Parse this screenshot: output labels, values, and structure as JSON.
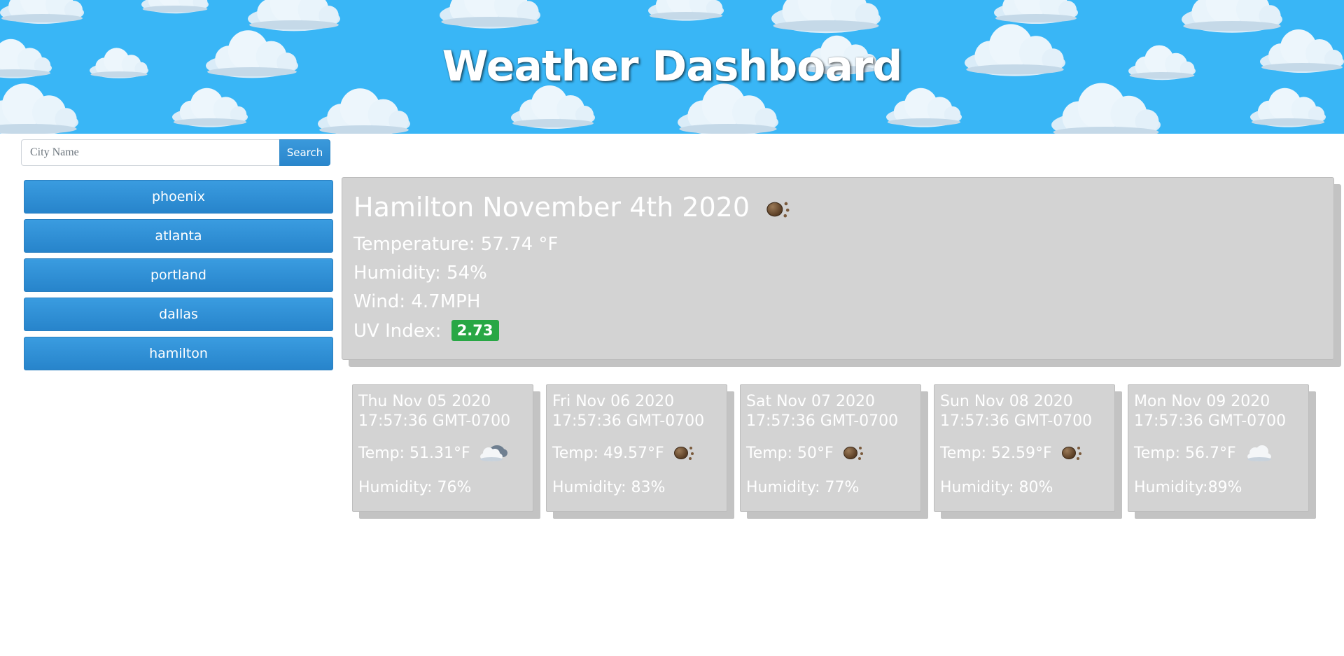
{
  "header": {
    "title": "Weather Dashboard"
  },
  "search": {
    "placeholder": "City Name",
    "value": "",
    "button_label": "Search"
  },
  "history": [
    {
      "label": "phoenix"
    },
    {
      "label": "atlanta"
    },
    {
      "label": "portland"
    },
    {
      "label": "dallas"
    },
    {
      "label": "hamilton"
    }
  ],
  "current": {
    "title": "Hamilton November 4th 2020",
    "icon": "rain-icon",
    "temperature": "Temperature: 57.74 °F",
    "humidity": "Humidity: 54%",
    "wind": "Wind: 4.7MPH",
    "uv_label": "UV Index:",
    "uv_value": "2.73",
    "uv_color": "#28a745"
  },
  "forecast": [
    {
      "date": "Thu Nov 05 2020 17:57:36 GMT-0700",
      "temp": "Temp: 51.31°F",
      "icon": "partly-cloudy-icon",
      "humidity": "Humidity: 76%"
    },
    {
      "date": "Fri Nov 06 2020 17:57:36 GMT-0700",
      "temp": "Temp: 49.57°F",
      "icon": "rain-icon",
      "humidity": "Humidity: 83%"
    },
    {
      "date": "Sat Nov 07 2020 17:57:36 GMT-0700",
      "temp": "Temp: 50°F",
      "icon": "rain-icon",
      "humidity": "Humidity: 77%"
    },
    {
      "date": "Sun Nov 08 2020 17:57:36 GMT-0700",
      "temp": "Temp: 52.59°F",
      "icon": "rain-icon",
      "humidity": "Humidity: 80%"
    },
    {
      "date": "Mon Nov 09 2020 17:57:36 GMT-0700",
      "temp": "Temp: 56.7°F",
      "icon": "cloud-icon",
      "humidity": "Humidity:89%"
    }
  ],
  "colors": {
    "header_sky": "#39b6f6",
    "button_blue": "#2a86cc",
    "panel_gray": "#d3d3d3"
  }
}
